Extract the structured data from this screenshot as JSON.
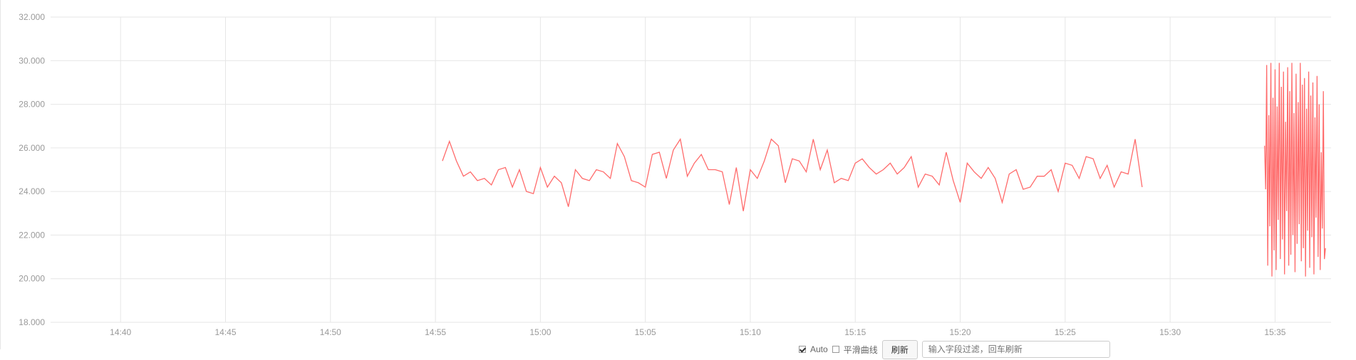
{
  "chart_data": {
    "type": "line",
    "title": "",
    "xlabel": "",
    "ylabel": "",
    "ylim": [
      18,
      32
    ],
    "xlim": [
      "14:36:40",
      "15:37:40"
    ],
    "grid": true,
    "legend": "none",
    "y_ticks": [
      "18.000",
      "20.000",
      "22.000",
      "24.000",
      "26.000",
      "28.000",
      "30.000",
      "32.000"
    ],
    "x_ticks": [
      "14:40",
      "14:45",
      "14:50",
      "14:55",
      "15:00",
      "15:05",
      "15:10",
      "15:15",
      "15:20",
      "15:25",
      "15:30",
      "15:35"
    ],
    "series": [
      {
        "color": "#ff6b6b",
        "points": [
          [
            "14:55:20",
            25.4
          ],
          [
            "14:55:40",
            26.3
          ],
          [
            "14:56:00",
            25.4
          ],
          [
            "14:56:20",
            24.7
          ],
          [
            "14:56:40",
            24.9
          ],
          [
            "14:57:00",
            24.5
          ],
          [
            "14:57:20",
            24.6
          ],
          [
            "14:57:40",
            24.3
          ],
          [
            "14:58:00",
            25.0
          ],
          [
            "14:58:20",
            25.1
          ],
          [
            "14:58:40",
            24.2
          ],
          [
            "14:59:00",
            25.0
          ],
          [
            "14:59:20",
            24.0
          ],
          [
            "14:59:40",
            23.9
          ],
          [
            "15:00:00",
            25.1
          ],
          [
            "15:00:20",
            24.2
          ],
          [
            "15:00:40",
            24.7
          ],
          [
            "15:01:00",
            24.4
          ],
          [
            "15:01:20",
            23.3
          ],
          [
            "15:01:40",
            25.0
          ],
          [
            "15:02:00",
            24.6
          ],
          [
            "15:02:20",
            24.5
          ],
          [
            "15:02:40",
            25.0
          ],
          [
            "15:03:00",
            24.9
          ],
          [
            "15:03:20",
            24.6
          ],
          [
            "15:03:40",
            26.2
          ],
          [
            "15:04:00",
            25.6
          ],
          [
            "15:04:20",
            24.5
          ],
          [
            "15:04:40",
            24.4
          ],
          [
            "15:05:00",
            24.2
          ],
          [
            "15:05:20",
            25.7
          ],
          [
            "15:05:40",
            25.8
          ],
          [
            "15:06:00",
            24.6
          ],
          [
            "15:06:20",
            25.9
          ],
          [
            "15:06:40",
            26.4
          ],
          [
            "15:07:00",
            24.7
          ],
          [
            "15:07:20",
            25.3
          ],
          [
            "15:07:40",
            25.7
          ],
          [
            "15:08:00",
            25.0
          ],
          [
            "15:08:20",
            25.0
          ],
          [
            "15:08:40",
            24.9
          ],
          [
            "15:09:00",
            23.4
          ],
          [
            "15:09:20",
            25.1
          ],
          [
            "15:09:40",
            23.1
          ],
          [
            "15:10:00",
            25.0
          ],
          [
            "15:10:20",
            24.6
          ],
          [
            "15:10:40",
            25.4
          ],
          [
            "15:11:00",
            26.4
          ],
          [
            "15:11:20",
            26.1
          ],
          [
            "15:11:40",
            24.4
          ],
          [
            "15:12:00",
            25.5
          ],
          [
            "15:12:20",
            25.4
          ],
          [
            "15:12:40",
            24.9
          ],
          [
            "15:13:00",
            26.4
          ],
          [
            "15:13:20",
            25.0
          ],
          [
            "15:13:40",
            25.9
          ],
          [
            "15:14:00",
            24.4
          ],
          [
            "15:14:20",
            24.6
          ],
          [
            "15:14:40",
            24.5
          ],
          [
            "15:15:00",
            25.3
          ],
          [
            "15:15:20",
            25.5
          ],
          [
            "15:15:40",
            25.1
          ],
          [
            "15:16:00",
            24.8
          ],
          [
            "15:16:20",
            25.0
          ],
          [
            "15:16:40",
            25.3
          ],
          [
            "15:17:00",
            24.8
          ],
          [
            "15:17:20",
            25.1
          ],
          [
            "15:17:40",
            25.6
          ],
          [
            "15:18:00",
            24.2
          ],
          [
            "15:18:20",
            24.8
          ],
          [
            "15:18:40",
            24.7
          ],
          [
            "15:19:00",
            24.3
          ],
          [
            "15:19:20",
            25.8
          ],
          [
            "15:19:40",
            24.5
          ],
          [
            "15:20:00",
            23.5
          ],
          [
            "15:20:20",
            25.3
          ],
          [
            "15:20:40",
            24.9
          ],
          [
            "15:21:00",
            24.6
          ],
          [
            "15:21:20",
            25.1
          ],
          [
            "15:21:40",
            24.6
          ],
          [
            "15:22:00",
            23.5
          ],
          [
            "15:22:20",
            24.8
          ],
          [
            "15:22:40",
            25.0
          ],
          [
            "15:23:00",
            24.1
          ],
          [
            "15:23:20",
            24.2
          ],
          [
            "15:23:40",
            24.7
          ],
          [
            "15:24:00",
            24.7
          ],
          [
            "15:24:20",
            25.0
          ],
          [
            "15:24:40",
            24.0
          ],
          [
            "15:25:00",
            25.3
          ],
          [
            "15:25:20",
            25.2
          ],
          [
            "15:25:40",
            24.6
          ],
          [
            "15:26:00",
            25.6
          ],
          [
            "15:26:20",
            25.5
          ],
          [
            "15:26:40",
            24.6
          ],
          [
            "15:27:00",
            25.2
          ],
          [
            "15:27:20",
            24.2
          ],
          [
            "15:27:40",
            24.9
          ],
          [
            "15:28:00",
            24.8
          ],
          [
            "15:28:20",
            26.4
          ],
          [
            "15:28:40",
            24.2
          ]
        ]
      },
      {
        "color": "#ff6b6b",
        "points": [
          [
            "15:34:30",
            26.1
          ],
          [
            "15:34:33",
            24.1
          ],
          [
            "15:34:36",
            29.8
          ],
          [
            "15:34:39",
            20.6
          ],
          [
            "15:34:42",
            27.5
          ],
          [
            "15:34:45",
            22.4
          ],
          [
            "15:34:48",
            29.9
          ],
          [
            "15:34:51",
            20.1
          ],
          [
            "15:34:54",
            28.3
          ],
          [
            "15:34:57",
            21.3
          ],
          [
            "15:35:00",
            29.6
          ],
          [
            "15:35:03",
            20.4
          ],
          [
            "15:35:06",
            27.9
          ],
          [
            "15:35:09",
            22.7
          ],
          [
            "15:35:12",
            29.9
          ],
          [
            "15:35:15",
            20.9
          ],
          [
            "15:35:18",
            28.8
          ],
          [
            "15:35:21",
            21.8
          ],
          [
            "15:35:24",
            29.5
          ],
          [
            "15:35:27",
            20.2
          ],
          [
            "15:35:30",
            27.2
          ],
          [
            "15:35:33",
            23.1
          ],
          [
            "15:35:36",
            29.7
          ],
          [
            "15:35:39",
            20.6
          ],
          [
            "15:35:42",
            28.6
          ],
          [
            "15:35:45",
            21.1
          ],
          [
            "15:35:48",
            29.9
          ],
          [
            "15:35:51",
            22.0
          ],
          [
            "15:35:54",
            27.6
          ],
          [
            "15:35:57",
            20.3
          ],
          [
            "15:36:00",
            29.4
          ],
          [
            "15:36:03",
            21.6
          ],
          [
            "15:36:06",
            28.1
          ],
          [
            "15:36:09",
            22.5
          ],
          [
            "15:36:12",
            29.9
          ],
          [
            "15:36:15",
            20.8
          ],
          [
            "15:36:18",
            28.9
          ],
          [
            "15:36:21",
            21.4
          ],
          [
            "15:36:24",
            29.2
          ],
          [
            "15:36:27",
            20.1
          ],
          [
            "15:36:30",
            27.8
          ],
          [
            "15:36:33",
            22.2
          ],
          [
            "15:36:36",
            29.5
          ],
          [
            "15:36:39",
            20.5
          ],
          [
            "15:36:42",
            28.4
          ],
          [
            "15:36:45",
            21.9
          ],
          [
            "15:36:48",
            29.0
          ],
          [
            "15:36:51",
            20.2
          ],
          [
            "15:36:54",
            27.4
          ],
          [
            "15:36:57",
            22.8
          ],
          [
            "15:37:00",
            29.3
          ],
          [
            "15:37:03",
            21.0
          ],
          [
            "15:37:06",
            28.0
          ],
          [
            "15:37:09",
            20.4
          ],
          [
            "15:37:12",
            25.8
          ],
          [
            "15:37:15",
            22.3
          ],
          [
            "15:37:18",
            28.6
          ],
          [
            "15:37:21",
            20.9
          ],
          [
            "15:37:24",
            21.4
          ]
        ]
      }
    ]
  },
  "toolbar": {
    "checkbox1_label": "Auto",
    "checkbox2_label": "平滑曲线",
    "refresh_label": "刷新",
    "search_placeholder": "输入字段过滤，回车刷新"
  }
}
